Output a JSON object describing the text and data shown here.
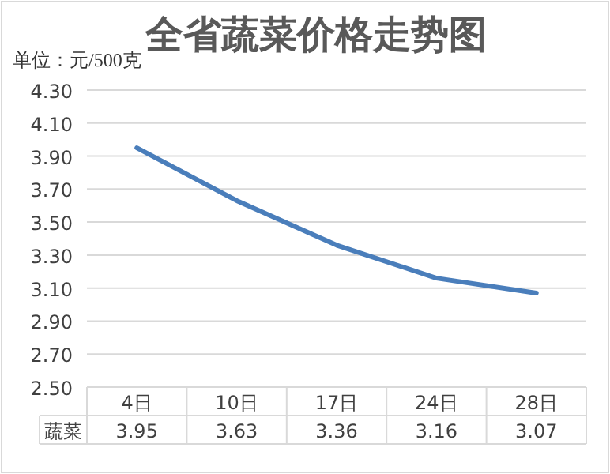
{
  "chart_data": {
    "type": "line",
    "title": "全省蔬菜价格走势图",
    "ylabel": "单位：元/500克",
    "categories": [
      "4日",
      "10日",
      "17日",
      "24日",
      "28日"
    ],
    "series": [
      {
        "name": "蔬菜",
        "color": "#4a7ebb",
        "values": [
          3.95,
          3.63,
          3.36,
          3.16,
          3.07
        ]
      }
    ],
    "ylim": [
      2.5,
      4.3
    ],
    "yticks": [
      {
        "value": 2.5,
        "label": "2.50"
      },
      {
        "value": 2.7,
        "label": "2.70"
      },
      {
        "value": 2.9,
        "label": "2.90"
      },
      {
        "value": 3.1,
        "label": "3.10"
      },
      {
        "value": 3.3,
        "label": "3.30"
      },
      {
        "value": 3.5,
        "label": "3.50"
      },
      {
        "value": 3.7,
        "label": "3.70"
      },
      {
        "value": 3.9,
        "label": "3.90"
      },
      {
        "value": 4.1,
        "label": "4.10"
      },
      {
        "value": 4.3,
        "label": "4.30"
      }
    ],
    "grid": "y",
    "data_labels": true,
    "marker": "none",
    "line_style": "solid"
  }
}
